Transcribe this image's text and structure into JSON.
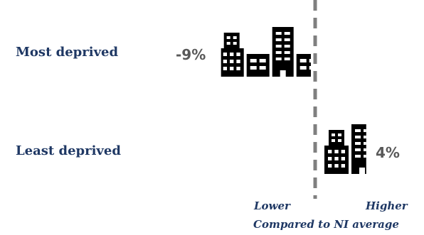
{
  "chart_data": {
    "type": "bar",
    "categories": [
      "Most deprived",
      "Least deprived"
    ],
    "values": [
      -9,
      4
    ],
    "value_labels": [
      "-9%",
      "4%"
    ],
    "xlabel": "Compared to NI average",
    "axis_low_label": "Lower",
    "axis_high_label": "Higher",
    "reference": "NI average",
    "grid": false,
    "colors": {
      "category_label": "#1f3864",
      "value_label": "#595959",
      "icon": "#000000",
      "reference_line": "#7f7f7f"
    },
    "icon": "building-icon"
  }
}
